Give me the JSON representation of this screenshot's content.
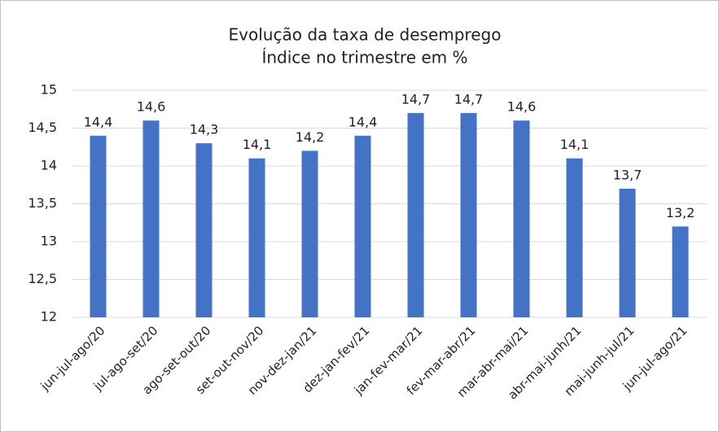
{
  "chart_data": {
    "type": "bar",
    "title": "Evolução da taxa de desemprego",
    "subtitle": "Índice no trimestre em %",
    "categories": [
      "jun-jul-ago/20",
      "jul-ago-set/20",
      "ago-set-out/20",
      "set-out-nov/20",
      "nov-dez-jan/21",
      "dez-jan-fev/21",
      "jan-fev-mar/21",
      "fev-mar-abr/21",
      "mar-abr-mai/21",
      "abr-mai-junh/21",
      "mai-junh-jul/21",
      "jun-jul-ago/21"
    ],
    "values": [
      14.4,
      14.6,
      14.3,
      14.1,
      14.2,
      14.4,
      14.7,
      14.7,
      14.6,
      14.1,
      13.7,
      13.2
    ],
    "value_labels": [
      "14,4",
      "14,6",
      "14,3",
      "14,1",
      "14,2",
      "14,4",
      "14,7",
      "14,7",
      "14,6",
      "14,1",
      "13,7",
      "13,2"
    ],
    "color": "#4472c4",
    "ylim": [
      12,
      15
    ],
    "yticks": [
      12,
      {
        "value": 12.5,
        "label": "12,5"
      },
      13,
      {
        "value": 13.5,
        "label": "13,5"
      },
      14,
      {
        "value": 14.5,
        "label": "14,5"
      },
      15
    ],
    "grid": true
  }
}
